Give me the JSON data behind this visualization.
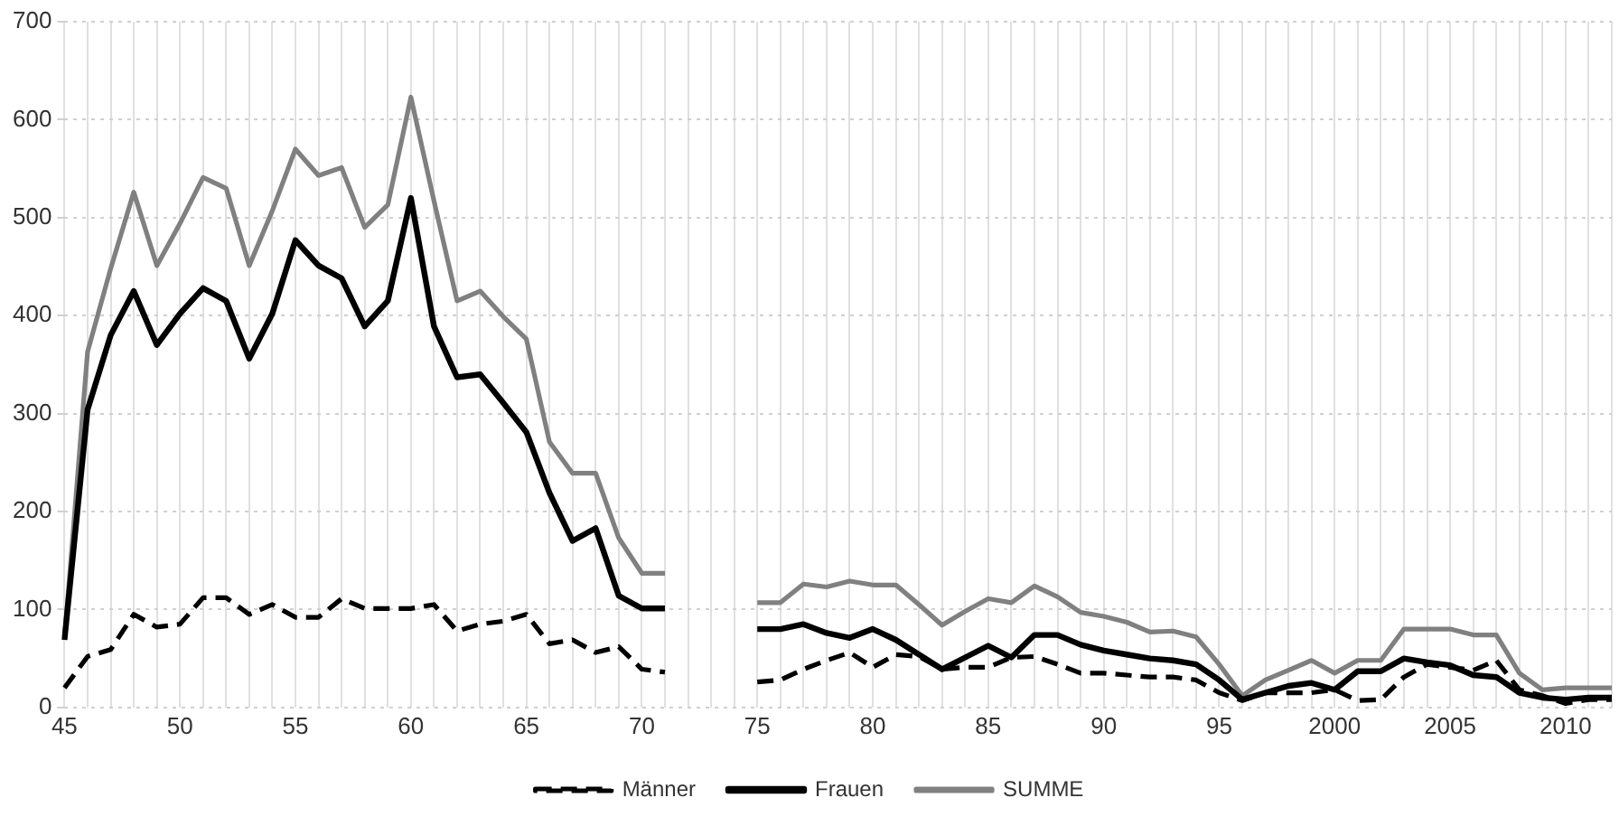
{
  "chart_data": {
    "type": "line",
    "categories": [
      "45",
      null,
      null,
      null,
      null,
      "50",
      null,
      null,
      null,
      null,
      "55",
      null,
      null,
      null,
      null,
      "60",
      null,
      null,
      null,
      null,
      "65",
      null,
      null,
      null,
      null,
      "70",
      null,
      null,
      null,
      null,
      "75",
      null,
      null,
      null,
      null,
      "80",
      null,
      null,
      null,
      null,
      "85",
      null,
      null,
      null,
      null,
      "90",
      null,
      null,
      null,
      null,
      "95",
      null,
      null,
      null,
      null,
      "2000",
      null,
      null,
      null,
      null,
      "2005",
      null,
      null,
      null,
      null,
      "2010",
      null,
      null
    ],
    "series": [
      {
        "name": "Männer",
        "color": "#000000",
        "line_style": "dashed",
        "values": [
          20,
          52,
          59,
          95,
          82,
          85,
          112,
          112,
          95,
          105,
          92,
          92,
          111,
          101,
          101,
          101,
          105,
          78,
          85,
          88,
          95,
          65,
          69,
          56,
          62,
          39,
          36,
          null,
          null,
          null,
          26,
          28,
          39,
          48,
          56,
          41,
          54,
          52,
          39,
          41,
          41,
          51,
          52,
          44,
          35,
          35,
          33,
          31,
          31,
          28,
          15,
          7,
          15,
          15,
          15,
          18,
          7,
          8,
          31,
          44,
          41,
          38,
          48,
          18,
          12,
          4,
          8,
          8
        ]
      },
      {
        "name": "Frauen",
        "color": "#000000",
        "line_style": "solid",
        "values": [
          69,
          304,
          380,
          425,
          370,
          402,
          428,
          415,
          356,
          402,
          477,
          451,
          438,
          389,
          415,
          520,
          389,
          337,
          340,
          311,
          281,
          219,
          170,
          183,
          114,
          101,
          101,
          null,
          null,
          null,
          80,
          80,
          85,
          76,
          71,
          80,
          69,
          54,
          39,
          51,
          63,
          51,
          74,
          74,
          64,
          58,
          54,
          50,
          48,
          44,
          28,
          8,
          15,
          22,
          25,
          18,
          37,
          37,
          50,
          46,
          43,
          33,
          31,
          15,
          10,
          8,
          10,
          10
        ]
      },
      {
        "name": "SUMME",
        "color": "#808080",
        "line_style": "solid",
        "values": [
          69,
          363,
          448,
          526,
          451,
          494,
          541,
          530,
          451,
          507,
          570,
          543,
          551,
          490,
          513,
          623,
          517,
          415,
          425,
          399,
          376,
          271,
          239,
          239,
          173,
          137,
          137,
          null,
          null,
          null,
          107,
          107,
          126,
          123,
          129,
          125,
          125,
          105,
          84,
          98,
          111,
          107,
          124,
          113,
          97,
          93,
          87,
          77,
          78,
          72,
          44,
          12,
          28,
          38,
          48,
          35,
          48,
          48,
          80,
          80,
          80,
          74,
          74,
          35,
          18,
          20,
          20,
          20
        ]
      }
    ],
    "ylim": [
      0,
      700
    ],
    "yticks": [
      0,
      100,
      200,
      300,
      400,
      500,
      600,
      700
    ],
    "grid": true,
    "legend": "bottom",
    "marker": "none"
  }
}
